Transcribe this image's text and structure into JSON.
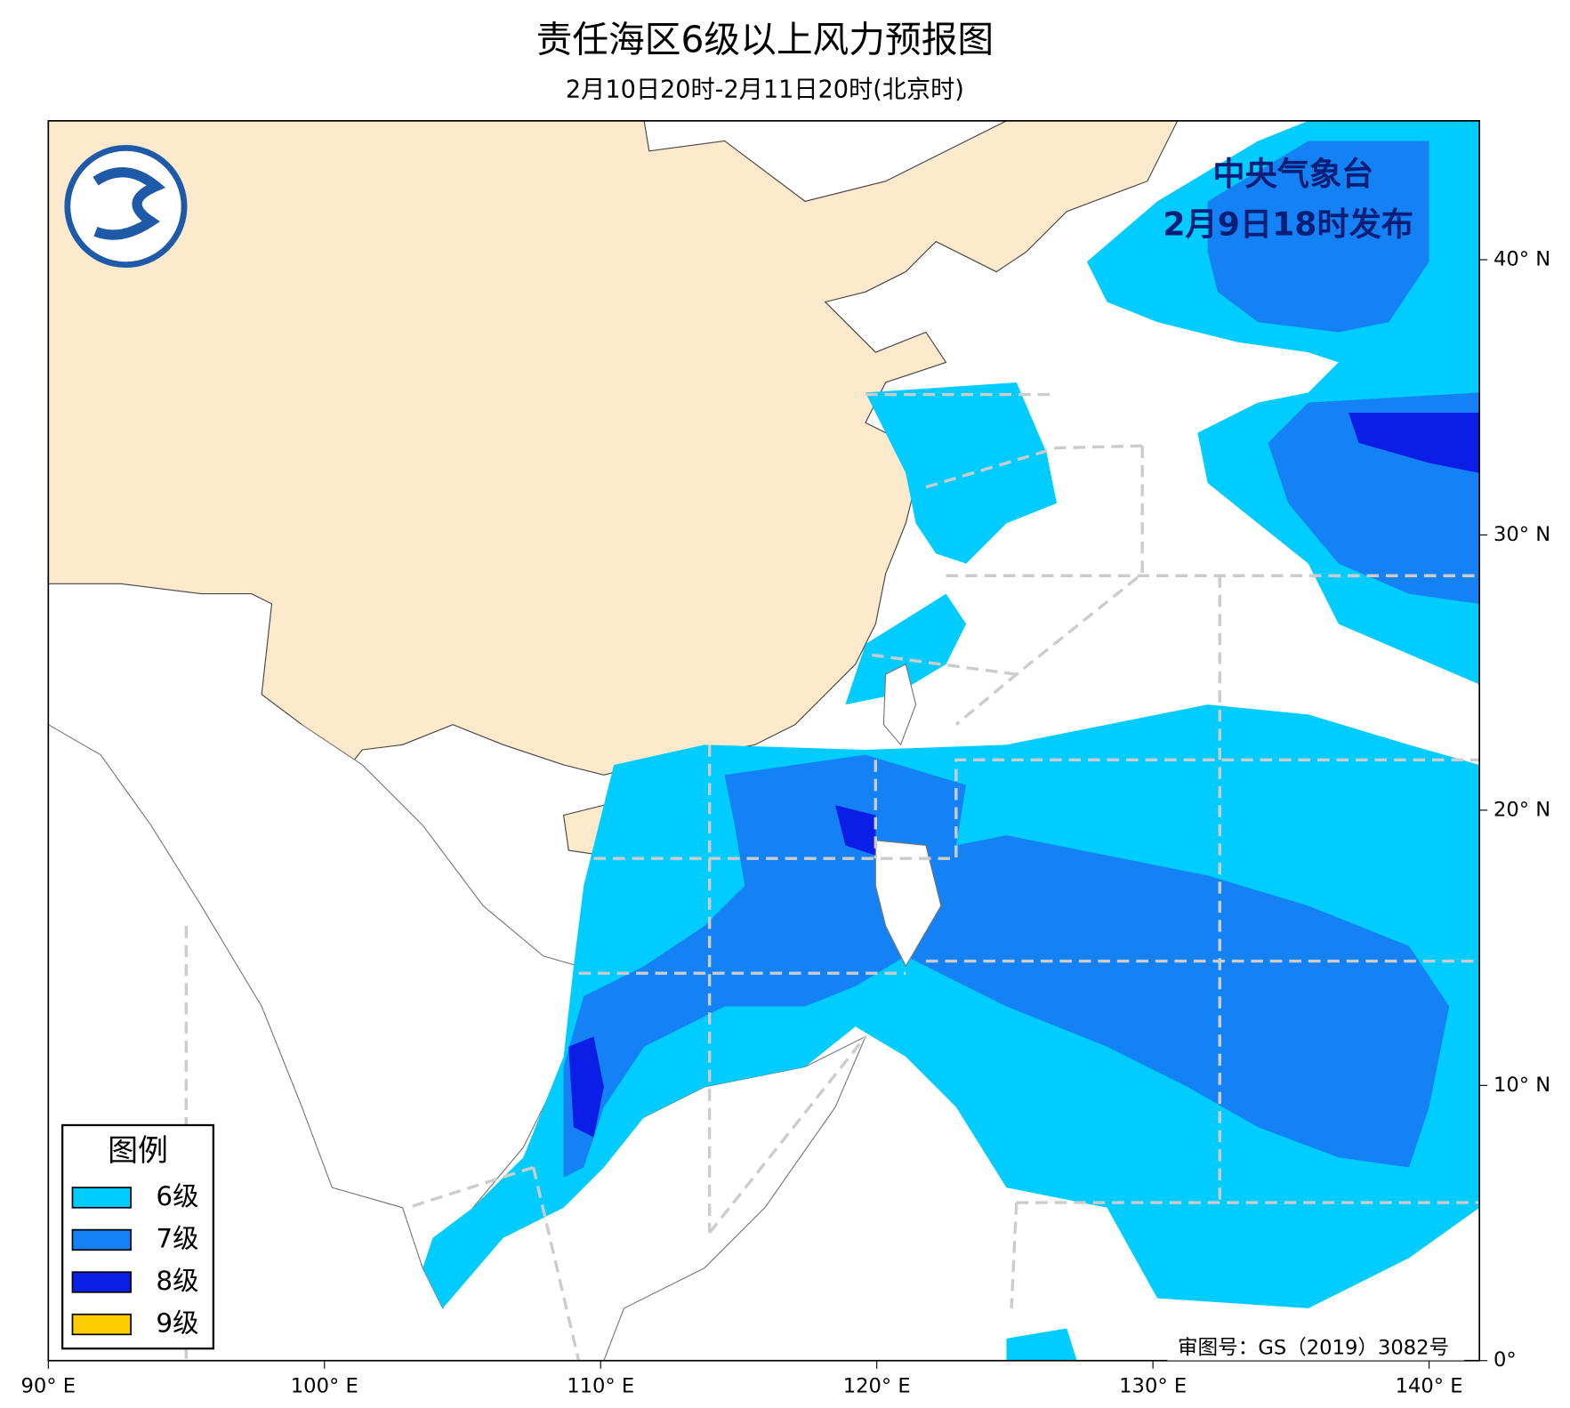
{
  "header": {
    "title": "责任海区6级以上风力预报图",
    "subtitle": "2月10日20时-2月11日20时(北京时)"
  },
  "issuer": {
    "name": "中央气象台",
    "time": "2月9日18时发布"
  },
  "legend": {
    "title": "图例",
    "items": [
      {
        "label": "6级",
        "color": "#00ccff"
      },
      {
        "label": "7级",
        "color": "#1482f5"
      },
      {
        "label": "8级",
        "color": "#0a1ee6"
      },
      {
        "label": "9级",
        "color": "#ffcc00"
      }
    ]
  },
  "axes": {
    "lon_labels": [
      "90° E",
      "100° E",
      "110° E",
      "120° E",
      "130° E",
      "140° E"
    ],
    "lat_labels": [
      "40° N",
      "30° N",
      "20° N",
      "10° N",
      "0°"
    ]
  },
  "footer": {
    "approval": "审图号：GS（2019）3082号"
  }
}
